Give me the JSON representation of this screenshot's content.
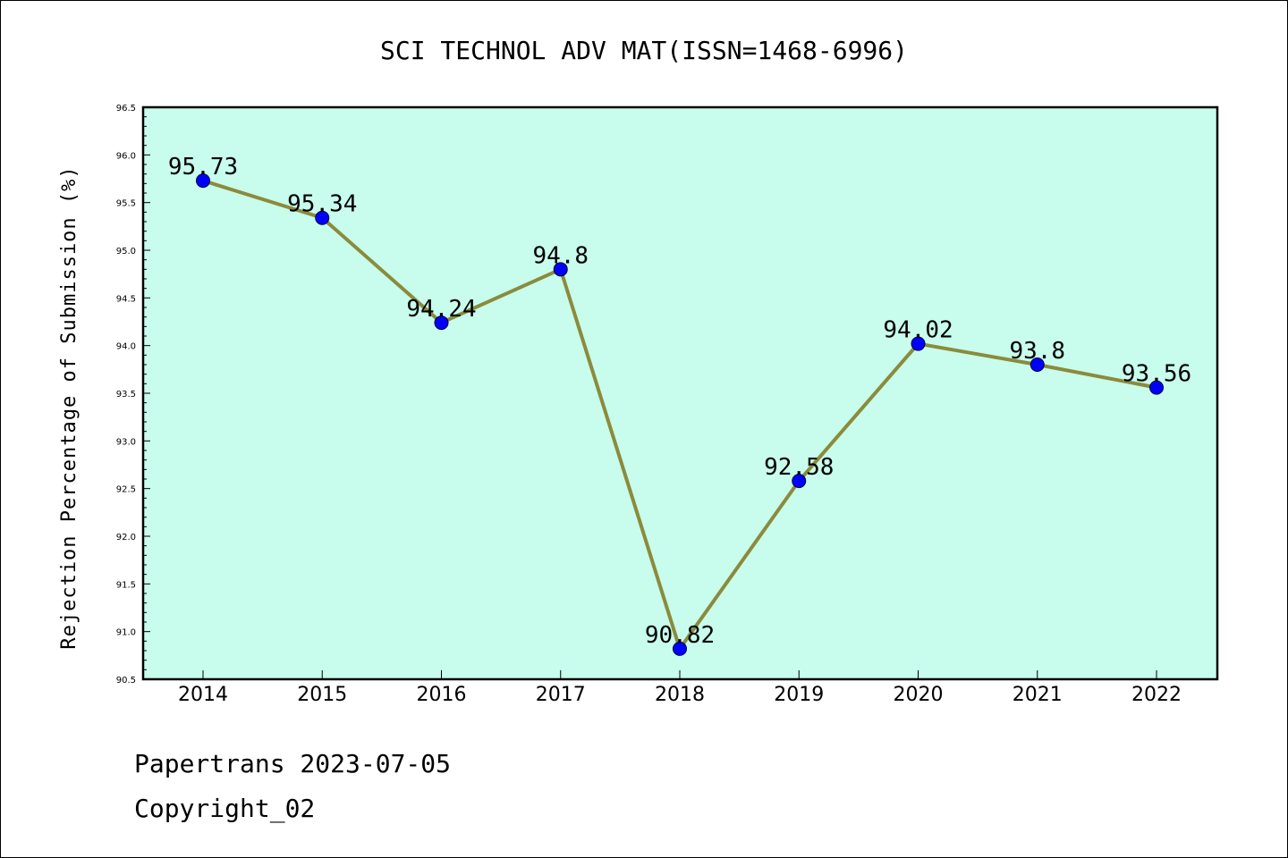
{
  "chart_data": {
    "type": "line",
    "title": "SCI TECHNOL ADV MAT(ISSN=1468-6996)",
    "xlabel": "",
    "ylabel": "Rejection Percentage of Submission (%)",
    "categories": [
      "2014",
      "2015",
      "2016",
      "2017",
      "2018",
      "2019",
      "2020",
      "2021",
      "2022"
    ],
    "series": [
      {
        "values": [
          95.73,
          95.34,
          94.24,
          94.8,
          90.82,
          92.58,
          94.02,
          93.8,
          93.56
        ]
      }
    ],
    "data_labels": [
      "95.73",
      "95.34",
      "94.24",
      "94.8",
      "90.82",
      "92.58",
      "94.02",
      "93.8",
      "93.56"
    ],
    "ylim": [
      90.5,
      96.5
    ],
    "yticks": [
      "90.5",
      "91.0",
      "91.5",
      "92.0",
      "92.5",
      "93.0",
      "93.5",
      "94.0",
      "94.5",
      "95.0",
      "95.5",
      "96.0",
      "96.5"
    ],
    "grid": false,
    "colors": {
      "plot_background": "#c8fcec",
      "line": "#8b8b3c",
      "marker": "#0000ff"
    }
  },
  "footer": {
    "line1": "Papertrans 2023-07-05",
    "line2": "Copyright_02"
  }
}
